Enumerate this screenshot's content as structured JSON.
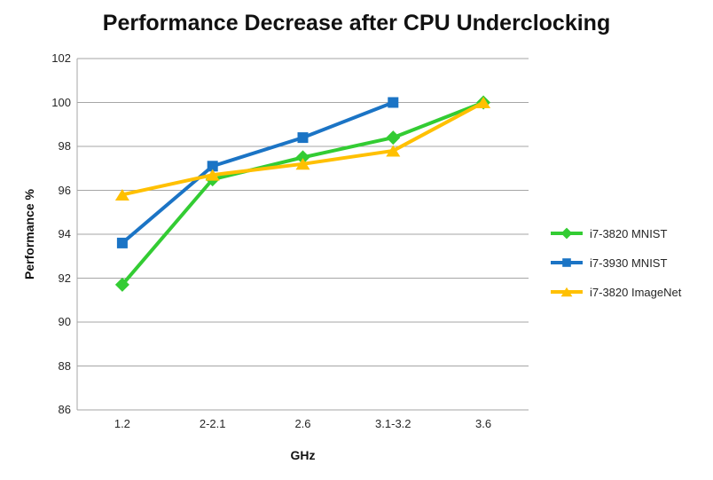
{
  "chart_data": {
    "type": "line",
    "title": "Performance Decrease after CPU Underclocking",
    "xlabel": "GHz",
    "ylabel": "Performance %",
    "categories": [
      "1.2",
      "2-2.1",
      "2.6",
      "3.1-3.2",
      "3.6"
    ],
    "ylim": [
      86,
      102
    ],
    "ytick_step": 2,
    "grid": "horizontal-major",
    "legend_position": "right",
    "colors": {
      "grid": "#A6A6A6",
      "axis": "#A6A6A6"
    },
    "series": [
      {
        "name": "i7-3820 MNIST",
        "color": "#33CC33",
        "marker": "diamond",
        "values": [
          91.7,
          96.5,
          97.5,
          98.4,
          100
        ]
      },
      {
        "name": "i7-3930 MNIST",
        "color": "#1B74C5",
        "marker": "square",
        "values": [
          93.6,
          97.1,
          98.4,
          100,
          null
        ]
      },
      {
        "name": "i7-3820 ImageNet",
        "color": "#FFC000",
        "marker": "triangle",
        "values": [
          95.8,
          96.7,
          97.2,
          97.8,
          100
        ]
      }
    ]
  }
}
